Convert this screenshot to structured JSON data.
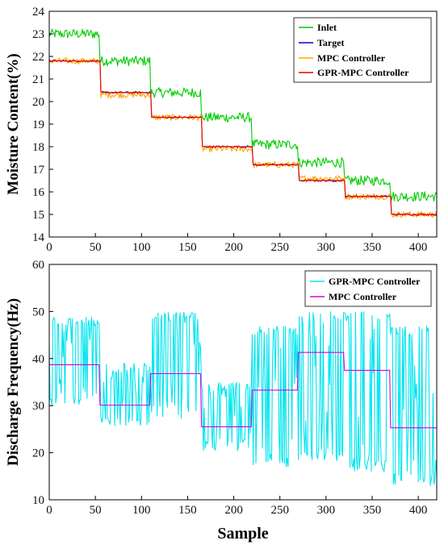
{
  "chart_data": [
    {
      "type": "line",
      "title": "",
      "xlabel": "",
      "ylabel": "Moisture Content(%)",
      "xlim": [
        0,
        420
      ],
      "ylim": [
        14,
        24
      ],
      "xticks": [
        0,
        50,
        100,
        150,
        200,
        250,
        300,
        350,
        400
      ],
      "yticks": [
        14,
        15,
        16,
        17,
        18,
        19,
        20,
        21,
        22,
        23,
        24
      ],
      "grid": false,
      "legend_position": "top-right",
      "series": [
        {
          "name": "Inlet",
          "color": "#00cc00",
          "noise": 0.22,
          "segments": [
            [
              0,
              55,
              23.0
            ],
            [
              55,
              110,
              21.8
            ],
            [
              110,
              165,
              20.4
            ],
            [
              165,
              220,
              19.3
            ],
            [
              220,
              270,
              18.1
            ],
            [
              270,
              320,
              17.3
            ],
            [
              320,
              370,
              16.5
            ],
            [
              370,
              421,
              15.8
            ]
          ]
        },
        {
          "name": "Target",
          "color": "#0000dd",
          "noise": 0,
          "segments": [
            [
              0,
              56,
              21.8
            ],
            [
              56,
              111,
              20.4
            ],
            [
              111,
              166,
              19.3
            ],
            [
              166,
              221,
              18.0
            ],
            [
              221,
              271,
              17.2
            ],
            [
              271,
              321,
              16.5
            ],
            [
              321,
              371,
              15.8
            ],
            [
              371,
              421,
              15.0
            ]
          ]
        },
        {
          "name": "MPC Controller",
          "color": "#ffaa00",
          "noise": 0.14,
          "segments": [
            [
              0,
              56,
              21.8
            ],
            [
              56,
              111,
              20.3
            ],
            [
              111,
              166,
              19.3
            ],
            [
              166,
              221,
              17.9
            ],
            [
              221,
              271,
              17.2
            ],
            [
              271,
              321,
              16.6
            ],
            [
              321,
              371,
              15.8
            ],
            [
              371,
              421,
              15.0
            ]
          ]
        },
        {
          "name": "GPR-MPC Controller",
          "color": "#ee0000",
          "noise": 0.05,
          "segments": [
            [
              0,
              56,
              21.8
            ],
            [
              56,
              111,
              20.4
            ],
            [
              111,
              166,
              19.3
            ],
            [
              166,
              221,
              18.0
            ],
            [
              221,
              271,
              17.2
            ],
            [
              271,
              321,
              16.5
            ],
            [
              321,
              371,
              15.8
            ],
            [
              371,
              421,
              15.0
            ]
          ]
        }
      ]
    },
    {
      "type": "line",
      "title": "",
      "xlabel": "Sample",
      "ylabel": "Discharge Frequency(Hz)",
      "xlim": [
        0,
        420
      ],
      "ylim": [
        10,
        60
      ],
      "xticks": [
        0,
        50,
        100,
        150,
        200,
        250,
        300,
        350,
        400
      ],
      "yticks": [
        10,
        20,
        30,
        40,
        50,
        60
      ],
      "grid": false,
      "legend_position": "top-right",
      "series": [
        {
          "name": "GPR-MPC Controller",
          "color": "#00e5ee",
          "pulse": true,
          "segments": [
            [
              0,
              55,
              30,
              49
            ],
            [
              55,
              110,
              25,
              39
            ],
            [
              110,
              165,
              27,
              50
            ],
            [
              165,
              220,
              20,
              35
            ],
            [
              220,
              270,
              17,
              47
            ],
            [
              270,
              320,
              18,
              50
            ],
            [
              320,
              370,
              16,
              50
            ],
            [
              370,
              421,
              13,
              47
            ]
          ]
        },
        {
          "name": "MPC Controller",
          "color": "#dd00dd",
          "pulse": false,
          "segments": [
            [
              0,
              55,
              38.7
            ],
            [
              55,
              110,
              30.1
            ],
            [
              110,
              165,
              36.8
            ],
            [
              165,
              220,
              25.5
            ],
            [
              220,
              270,
              33.3
            ],
            [
              270,
              320,
              41.3
            ],
            [
              320,
              370,
              37.5
            ],
            [
              370,
              421,
              25.3
            ]
          ]
        }
      ]
    }
  ]
}
